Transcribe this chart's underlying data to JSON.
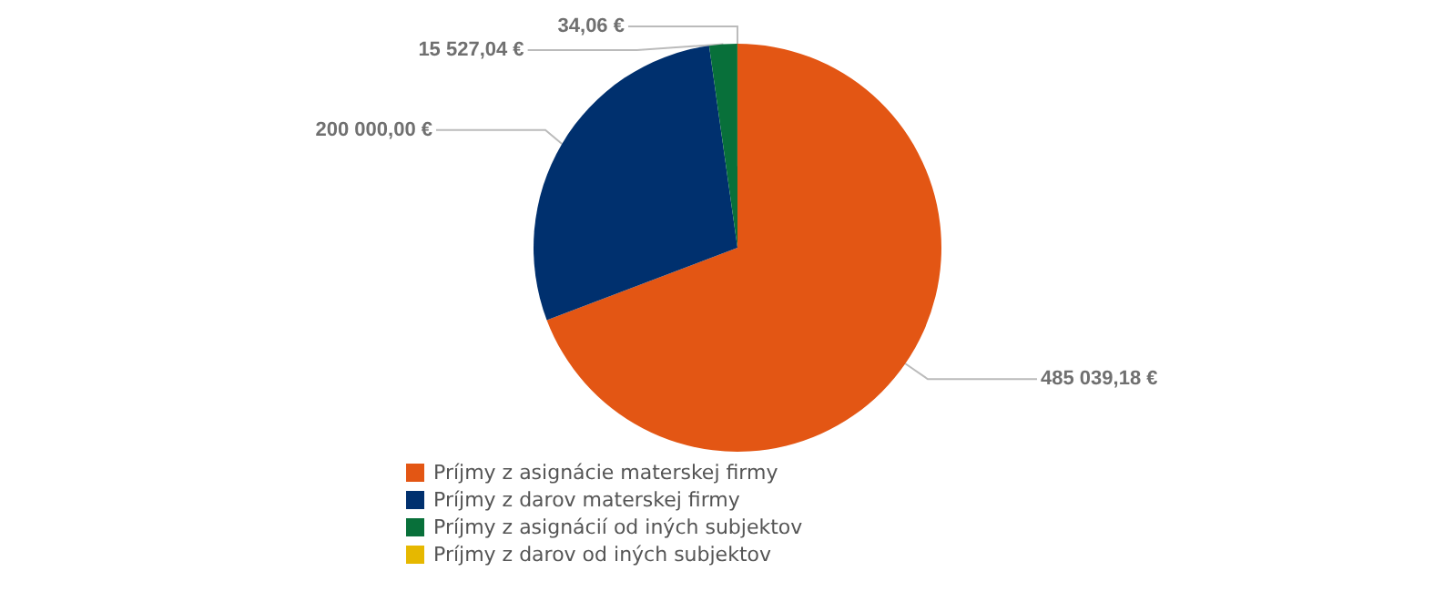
{
  "chart_data": {
    "type": "pie",
    "categories": [
      "Príjmy z asignácie materskej firmy",
      "Príjmy z darov materskej firmy",
      "Príjmy z asignácií od iných subjektov",
      "Príjmy z darov od iných subjektov"
    ],
    "values": [
      485039.18,
      200000.0,
      15527.04,
      34.06
    ],
    "colors": [
      "#e35614",
      "#00306e",
      "#08703a",
      "#e6b800"
    ],
    "value_labels": [
      "485 039,18 €",
      "200 000,00 €",
      "15 527,04 €",
      "34,06 €"
    ],
    "legend": "bottom left"
  }
}
